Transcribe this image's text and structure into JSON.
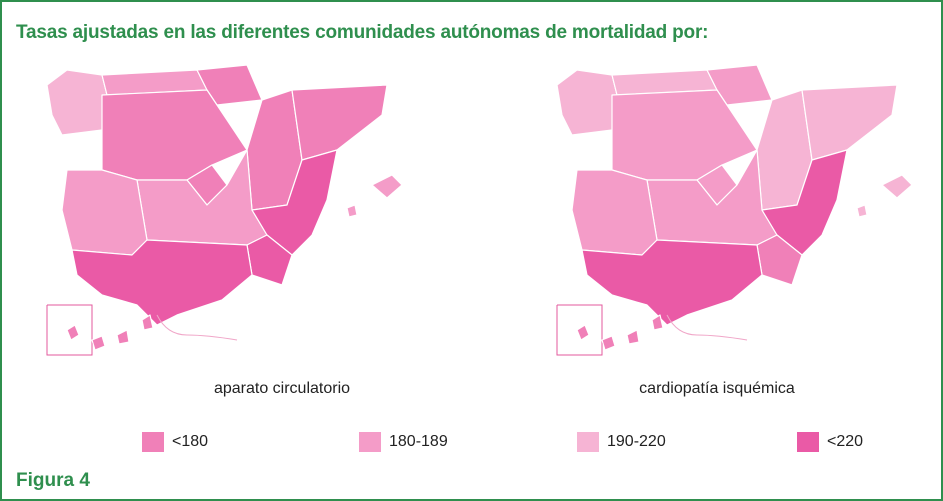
{
  "title": "Tasas ajustadas en las diferentes comunidades autónomas de mortalidad por:",
  "maps": [
    {
      "caption": "aparato circulatorio"
    },
    {
      "caption": "cardiopatía isquémica"
    }
  ],
  "legend": [
    {
      "label": "<180",
      "color": "#f080b8"
    },
    {
      "label": "180-189",
      "color": "#f49cc8"
    },
    {
      "label": "190-220",
      "color": "#f6b4d4"
    },
    {
      "label": "<220",
      "color": "#ea5aa6"
    }
  ],
  "figure_label": "Figura 4"
}
